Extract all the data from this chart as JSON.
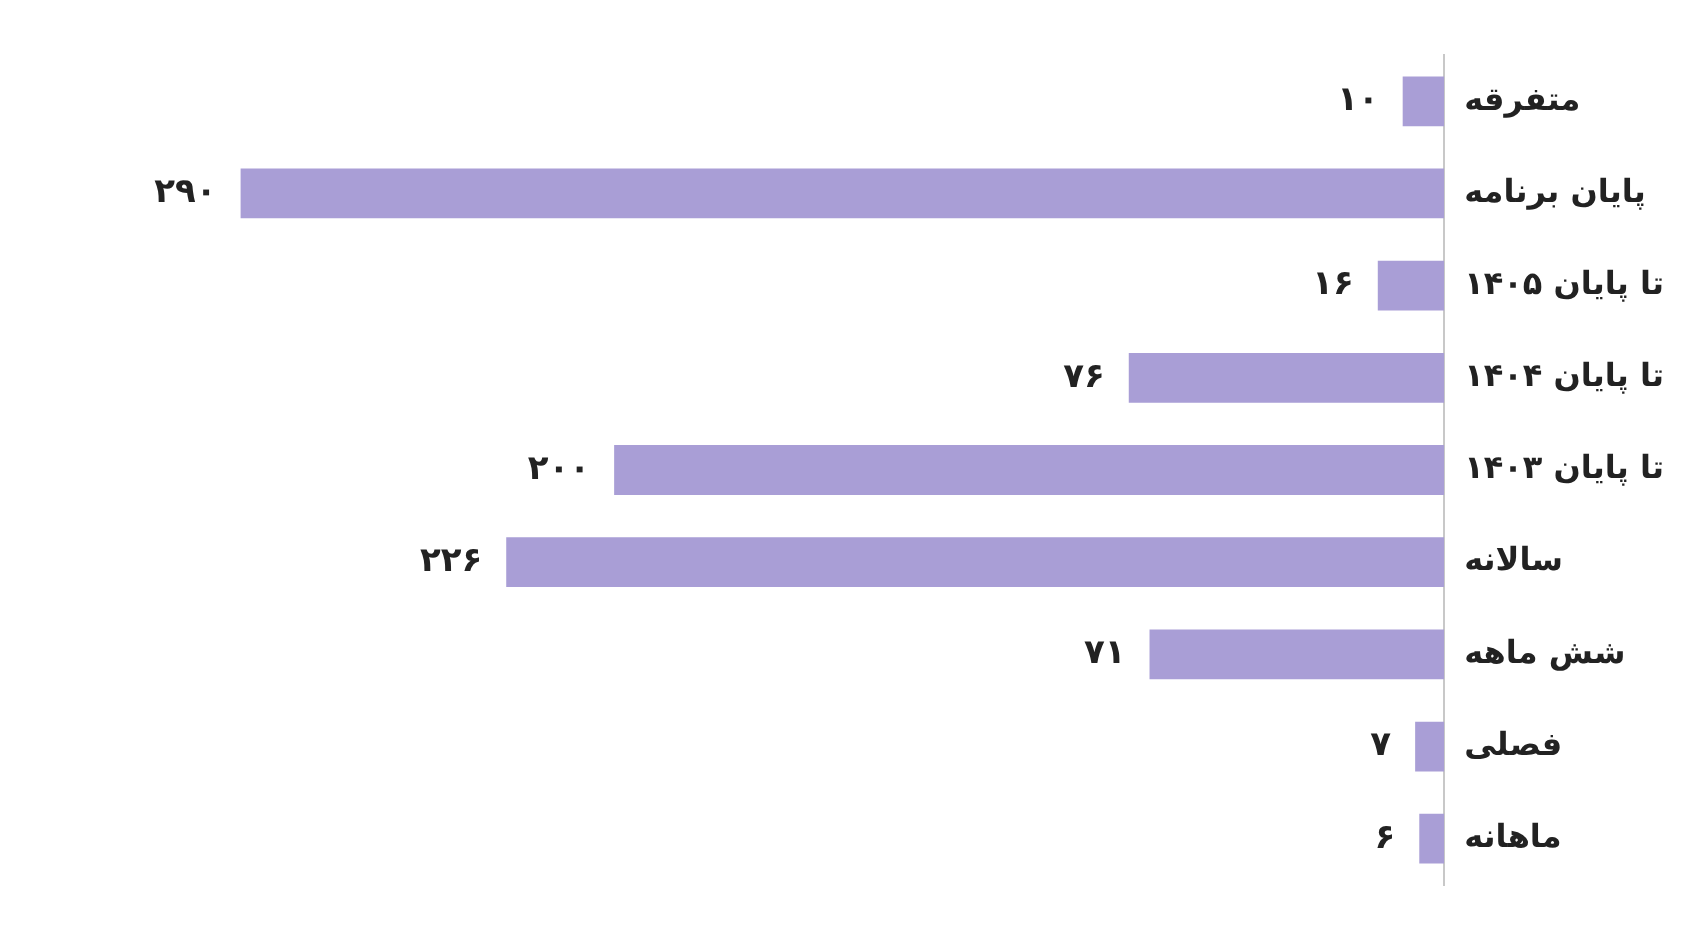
{
  "chart_data": {
    "type": "bar",
    "orientation": "horizontal",
    "categories": [
      "متفرقه",
      "پایان برنامه",
      "تا پایان ۱۴۰۵",
      "تا پایان ۱۴۰۴",
      "تا پایان ۱۴۰۳",
      "سالانه",
      "شش ماهه",
      "فصلی",
      "ماهانه"
    ],
    "values": [
      10,
      290,
      16,
      76,
      200,
      226,
      71,
      7,
      6
    ],
    "value_labels": [
      "۱۰",
      "۲۹۰",
      "۱۶",
      "۷۶",
      "۲۰۰",
      "۲۲۶",
      "۷۱",
      "۷",
      "۶"
    ],
    "color": "#a99ed6",
    "grid": false,
    "legend": false
  }
}
